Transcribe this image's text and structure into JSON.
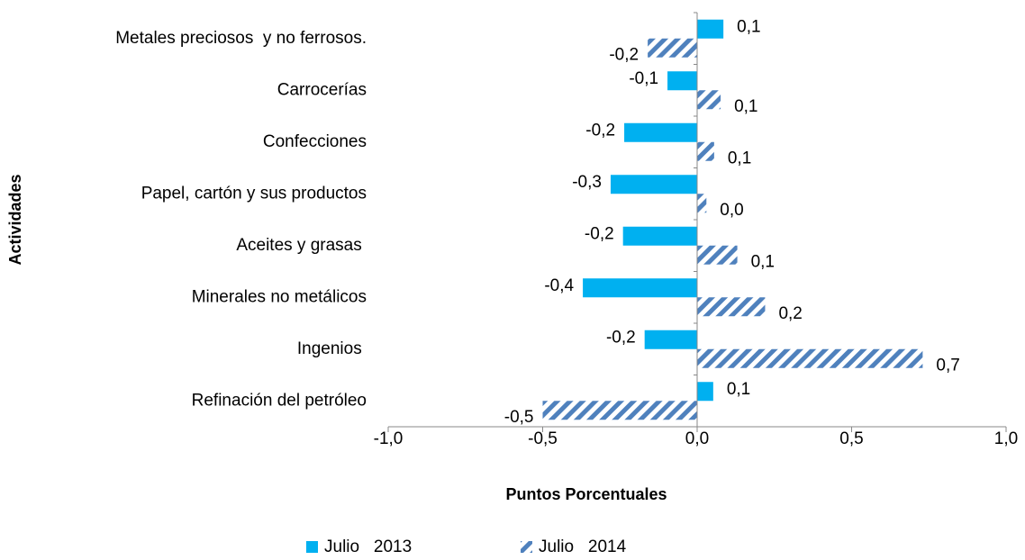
{
  "chart_data": {
    "type": "hbar",
    "x_label": "Puntos Porcentuales",
    "y_label": "Actividades",
    "categories": [
      "Metales preciosos  y no ferrosos.",
      "Carrocerías",
      "Confecciones",
      "Papel, cartón y sus productos",
      "Aceites y grasas ",
      "Minerales no metálicos",
      "Ingenios ",
      "Refinación del petróleo"
    ],
    "series": [
      {
        "name": "Julio   2013",
        "color": "#00b0f0",
        "fill": "solid",
        "values": [
          0.085,
          -0.096,
          -0.236,
          -0.28,
          -0.24,
          -0.37,
          -0.17,
          0.052
        ],
        "value_labels": [
          "0,1",
          "-0,1",
          "-0,2",
          "-0,3",
          "-0,2",
          "-0,4",
          "-0,2",
          "0,1"
        ]
      },
      {
        "name": "Julio   2014",
        "color": "#4f81bd",
        "fill": "hatch",
        "values": [
          -0.16,
          0.076,
          0.055,
          0.03,
          0.13,
          0.22,
          0.73,
          -0.5
        ],
        "value_labels": [
          "-0,2",
          "0,1",
          "0,1",
          "0,0",
          "0,1",
          "0,2",
          "0,7",
          "-0,5"
        ]
      }
    ],
    "xlim": [
      -1,
      1
    ],
    "xticks": [
      {
        "value": -1,
        "label": "-1,0"
      },
      {
        "value": -0.5,
        "label": "-0,5"
      },
      {
        "value": 0,
        "label": "0,0"
      },
      {
        "value": 0.5,
        "label": "0,5"
      },
      {
        "value": 1,
        "label": "1,0"
      }
    ],
    "grid": false,
    "legend": "bottom"
  }
}
